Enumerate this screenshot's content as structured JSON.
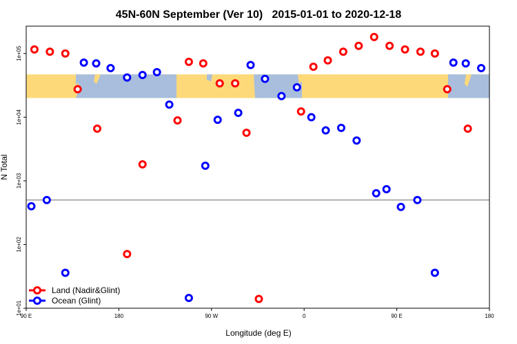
{
  "chart_data": {
    "type": "scatter",
    "title": "45N-60N September (Ver 10)   2015-01-01 to 2020-12-18",
    "xlabel": "Longitude (deg E)",
    "ylabel": "N Total",
    "xlim": [
      90,
      540
    ],
    "ylim_log10": [
      1,
      5.43
    ],
    "yscale": "log",
    "x_ticks": [
      {
        "value": 90,
        "label": "90 E"
      },
      {
        "value": 180,
        "label": "180"
      },
      {
        "value": 270,
        "label": "90 W"
      },
      {
        "value": 360,
        "label": "0"
      },
      {
        "value": 450,
        "label": "90 E"
      },
      {
        "value": 540,
        "label": "180"
      }
    ],
    "y_ticks": [
      {
        "value": 10,
        "label": "1e+01"
      },
      {
        "value": 100,
        "label": "1e+02"
      },
      {
        "value": 1000,
        "label": "1e+03"
      },
      {
        "value": 10000,
        "label": "1e+04"
      },
      {
        "value": 100000,
        "label": "1e+05"
      }
    ],
    "reference_line": 500,
    "map_band": {
      "y_range": [
        20000,
        47000
      ],
      "land_color": "#fdd97a",
      "ocean_color": "#a8bedc"
    },
    "legend_position": "bottom-left",
    "series": [
      {
        "name": "Land (Nadir&Glint)",
        "color": "#ff0000",
        "points": [
          [
            98,
            116000
          ],
          [
            113,
            107000
          ],
          [
            128,
            100000
          ],
          [
            140,
            27500
          ],
          [
            159,
            6600
          ],
          [
            188,
            71
          ],
          [
            203,
            1820
          ],
          [
            237,
            8900
          ],
          [
            248,
            74000
          ],
          [
            262,
            70000
          ],
          [
            278,
            34000
          ],
          [
            293,
            34000
          ],
          [
            304,
            5700
          ],
          [
            316,
            14
          ],
          [
            357,
            12300
          ],
          [
            369,
            62000
          ],
          [
            383,
            78000
          ],
          [
            398,
            107000
          ],
          [
            413,
            132000
          ],
          [
            428,
            182000
          ],
          [
            443,
            132000
          ],
          [
            458,
            116000
          ],
          [
            473,
            107000
          ],
          [
            487,
            100000
          ],
          [
            499,
            27500
          ],
          [
            519,
            6600
          ]
        ]
      },
      {
        "name": "Ocean (Glint)",
        "color": "#0000ff",
        "points": [
          [
            95,
            400
          ],
          [
            110,
            500
          ],
          [
            128,
            36
          ],
          [
            146,
            72000
          ],
          [
            158,
            70000
          ],
          [
            172,
            59000
          ],
          [
            188,
            42000
          ],
          [
            203,
            46000
          ],
          [
            217,
            51000
          ],
          [
            229,
            15800
          ],
          [
            248,
            14.5
          ],
          [
            264,
            1730
          ],
          [
            276,
            9100
          ],
          [
            296,
            11700
          ],
          [
            308,
            66000
          ],
          [
            322,
            40000
          ],
          [
            338,
            21500
          ],
          [
            353,
            29500
          ],
          [
            367,
            10000
          ],
          [
            381,
            6200
          ],
          [
            396,
            6800
          ],
          [
            411,
            4300
          ],
          [
            430,
            640
          ],
          [
            440,
            740
          ],
          [
            454,
            390
          ],
          [
            470,
            500
          ],
          [
            487,
            36
          ],
          [
            505,
            72000
          ],
          [
            517,
            70000
          ],
          [
            532,
            59000
          ]
        ]
      }
    ]
  }
}
